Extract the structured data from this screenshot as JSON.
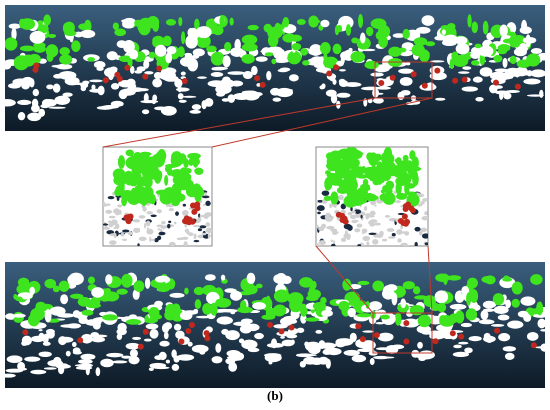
{
  "caption": "(b)"
}
